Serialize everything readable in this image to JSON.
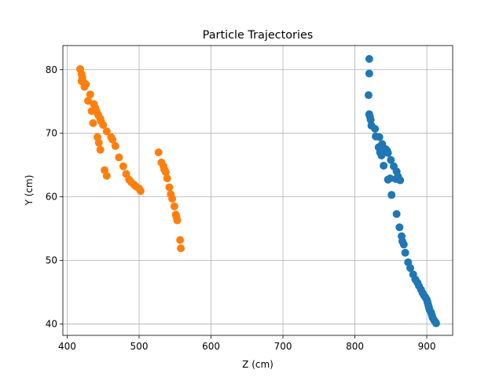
{
  "chart_data": {
    "type": "scatter",
    "title": "Particle Trajectories",
    "xlabel": "Z (cm)",
    "ylabel": "Y (cm)",
    "xlim": [
      394,
      936
    ],
    "ylim": [
      38.2,
      83.8
    ],
    "xticks": [
      400,
      500,
      600,
      700,
      800,
      900
    ],
    "yticks": [
      40,
      50,
      60,
      70,
      80
    ],
    "grid": true,
    "series": [
      {
        "color": "#1f77b4",
        "points": [
          [
            820,
            81.7
          ],
          [
            820,
            79.4
          ],
          [
            819,
            76.0
          ],
          [
            820,
            73.0
          ],
          [
            821,
            72.6
          ],
          [
            822,
            72.1
          ],
          [
            823,
            71.2
          ],
          [
            828,
            70.7
          ],
          [
            829,
            69.5
          ],
          [
            834,
            69.4
          ],
          [
            833,
            67.8
          ],
          [
            836,
            68.0
          ],
          [
            838,
            68.3
          ],
          [
            840,
            67.6
          ],
          [
            835,
            67.0
          ],
          [
            837,
            66.5
          ],
          [
            843,
            67.5
          ],
          [
            845,
            67.2
          ],
          [
            846,
            66.9
          ],
          [
            840,
            64.9
          ],
          [
            850,
            65.8
          ],
          [
            854,
            64.8
          ],
          [
            858,
            64.0
          ],
          [
            860,
            63.2
          ],
          [
            846,
            62.7
          ],
          [
            849,
            62.9
          ],
          [
            857,
            62.8
          ],
          [
            861,
            62.8
          ],
          [
            863,
            62.6
          ],
          [
            851,
            60.3
          ],
          [
            858,
            57.3
          ],
          [
            862,
            55.2
          ],
          [
            865,
            53.8
          ],
          [
            866,
            53.0
          ],
          [
            868,
            52.5
          ],
          [
            870,
            51.2
          ],
          [
            874,
            49.7
          ],
          [
            877,
            48.8
          ],
          [
            881,
            47.8
          ],
          [
            884,
            47.0
          ],
          [
            887,
            46.5
          ],
          [
            889,
            46.0
          ],
          [
            892,
            45.4
          ],
          [
            894,
            44.9
          ],
          [
            896,
            44.5
          ],
          [
            898,
            44.2
          ],
          [
            900,
            43.8
          ],
          [
            901,
            43.4
          ],
          [
            902,
            43.0
          ],
          [
            903,
            42.6
          ],
          [
            904,
            42.2
          ],
          [
            906,
            41.8
          ],
          [
            907,
            41.4
          ],
          [
            908,
            41.0
          ],
          [
            910,
            40.6
          ],
          [
            912,
            40.3
          ],
          [
            913,
            40.1
          ]
        ]
      },
      {
        "color": "#ff7f0e",
        "points": [
          [
            418,
            80.1
          ],
          [
            420,
            79.3
          ],
          [
            421,
            78.8
          ],
          [
            420,
            78.2
          ],
          [
            423,
            78.0
          ],
          [
            426,
            77.7
          ],
          [
            424,
            77.3
          ],
          [
            432,
            76.1
          ],
          [
            429,
            75.1
          ],
          [
            437,
            74.6
          ],
          [
            439,
            74.0
          ],
          [
            441,
            73.4
          ],
          [
            443,
            72.9
          ],
          [
            446,
            72.3
          ],
          [
            447,
            71.9
          ],
          [
            450,
            71.3
          ],
          [
            434,
            73.5
          ],
          [
            436,
            71.6
          ],
          [
            455,
            70.3
          ],
          [
            461,
            69.4
          ],
          [
            463,
            69.0
          ],
          [
            442,
            69.4
          ],
          [
            444,
            68.5
          ],
          [
            446,
            67.4
          ],
          [
            467,
            68.0
          ],
          [
            472,
            66.2
          ],
          [
            478,
            64.8
          ],
          [
            482,
            63.6
          ],
          [
            486,
            62.7
          ],
          [
            489,
            62.3
          ],
          [
            493,
            61.9
          ],
          [
            496,
            61.6
          ],
          [
            500,
            61.3
          ],
          [
            502,
            60.9
          ],
          [
            452,
            64.2
          ],
          [
            455,
            63.3
          ],
          [
            527,
            67.0
          ],
          [
            531,
            65.4
          ],
          [
            534,
            64.8
          ],
          [
            535,
            64.3
          ],
          [
            537,
            63.9
          ],
          [
            539,
            62.9
          ],
          [
            542,
            61.5
          ],
          [
            544,
            60.4
          ],
          [
            546,
            59.7
          ],
          [
            549,
            58.5
          ],
          [
            551,
            57.2
          ],
          [
            552,
            56.8
          ],
          [
            553,
            56.3
          ],
          [
            557,
            53.2
          ],
          [
            558,
            51.9
          ]
        ]
      }
    ]
  }
}
